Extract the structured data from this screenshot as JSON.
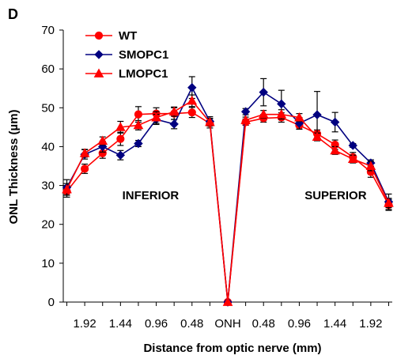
{
  "panel_label": "D",
  "chart_data": {
    "type": "line",
    "ylabel": "ONL Thickness (µm)",
    "xlabel": "Distance from optic nerve (mm)",
    "ylim": [
      0,
      70
    ],
    "yticks": [
      0,
      10,
      20,
      30,
      40,
      50,
      60,
      70
    ],
    "x_tick_labels": [
      "1.92",
      "1.44",
      "0.96",
      "0.48",
      "ONH",
      "0.48",
      "0.96",
      "1.44",
      "1.92"
    ],
    "x_tick_positions": [
      1,
      3,
      5,
      7,
      9,
      11,
      13,
      15,
      17
    ],
    "xlim": [
      -0.2,
      18.2
    ],
    "region_labels": [
      {
        "text": "INFERIOR",
        "x": 3.1,
        "y": 26.5
      },
      {
        "text": "SUPERIOR",
        "x": 13.3,
        "y": 26.5
      }
    ],
    "legend_position": "top-left",
    "grid": false,
    "x": [
      0,
      1,
      2,
      3,
      4,
      5,
      6,
      7,
      8,
      9,
      10,
      11,
      12,
      13,
      14,
      15,
      16,
      17,
      18
    ],
    "series": [
      {
        "name": "WT",
        "color": "#ff0000",
        "marker": "circle",
        "values": [
          28.5,
          34.3,
          38.3,
          42.0,
          48.3,
          48.5,
          48.5,
          48.8,
          46.0,
          0,
          46.3,
          47.3,
          47.5,
          45.5,
          43.3,
          40.5,
          37.3,
          33.5,
          25.0
        ],
        "errors": [
          1.5,
          1.2,
          1.3,
          1.7,
          2.0,
          1.5,
          1.5,
          1.3,
          1.2,
          0,
          0.8,
          1.0,
          1.2,
          1.0,
          1.0,
          1.2,
          1.2,
          1.4,
          1.4
        ]
      },
      {
        "name": "SMOPC1",
        "color": "#000080",
        "marker": "diamond",
        "values": [
          29.5,
          38.0,
          40.0,
          37.8,
          40.8,
          47.0,
          45.8,
          55.2,
          46.5,
          0,
          49.0,
          54.0,
          51.0,
          46.0,
          48.2,
          46.3,
          40.3,
          35.8,
          25.8
        ],
        "errors": [
          2.0,
          1.2,
          1.4,
          1.2,
          0.8,
          1.3,
          1.2,
          2.8,
          1.2,
          0,
          0.8,
          3.5,
          3.5,
          1.5,
          6.0,
          2.5,
          0.5,
          0.8,
          2.0
        ]
      },
      {
        "name": "LMOPC1",
        "color": "#ff0000",
        "marker": "triangle",
        "values": [
          29.0,
          38.3,
          41.5,
          45.0,
          45.5,
          47.5,
          49.0,
          51.8,
          46.3,
          0,
          46.8,
          48.3,
          48.3,
          47.5,
          42.5,
          39.0,
          36.8,
          35.0,
          25.5
        ],
        "errors": [
          1.5,
          1.0,
          1.0,
          1.5,
          1.2,
          1.5,
          1.2,
          1.5,
          1.0,
          0,
          0.8,
          1.0,
          1.2,
          1.0,
          1.0,
          1.0,
          1.0,
          1.2,
          1.2
        ]
      }
    ]
  }
}
